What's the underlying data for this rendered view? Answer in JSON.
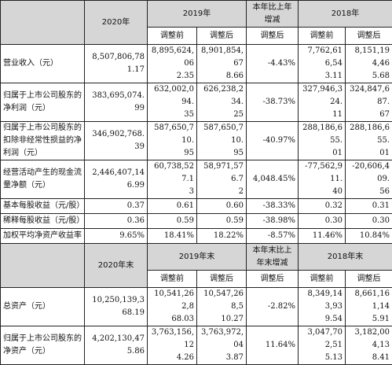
{
  "header1": {
    "col_2020": "2020年",
    "col_2019": "2019年",
    "col_change": "本年比上年增减",
    "col_2018": "2018年",
    "sub_before": "调整前",
    "sub_after": "调整后",
    "sub_change": "调整后"
  },
  "rows1": [
    {
      "label": "营业收入（元）",
      "v2020": "8,507,806,78\n1.17",
      "v2019b": "8,895,624,06\n2.35",
      "v2019a": "8,901,854,67\n8.66",
      "chg": "-4.43%",
      "v2018b": "7,762,616,54\n3.11",
      "v2018a": "8,151,194,46\n5.68"
    },
    {
      "label": "归属于上市公司股东的净利润（元）",
      "v2020": "383,695,074.\n99",
      "v2019b": "632,002,094.\n35",
      "v2019a": "626,238,234.\n25",
      "chg": "-38.73%",
      "v2018b": "327,946,324.\n11",
      "v2018a": "324,847,687.\n67"
    },
    {
      "label": "归属于上市公司股东的扣除非经常性损益的净利润（元）",
      "v2020": "346,902,768.\n39",
      "v2019b": "587,650,710.\n95",
      "v2019a": "587,650,710.\n95",
      "chg": "-40.97%",
      "v2018b": "288,186,655.\n01",
      "v2018a": "288,186,655.\n01"
    },
    {
      "label": "经营活动产生的现金流量净额（元）",
      "v2020": "2,446,407,14\n6.99",
      "v2019b": "60,738,527.1\n3",
      "v2019a": "58,971,576.7\n2",
      "chg": "4,048.45%",
      "v2018b": "-77,562,911.\n40",
      "v2018a": "-20,606,409.\n56"
    },
    {
      "label": "基本每股收益（元/股）",
      "v2020": "0.37",
      "v2019b": "0.61",
      "v2019a": "0.60",
      "chg": "-38.33%",
      "v2018b": "0.32",
      "v2018a": "0.31"
    },
    {
      "label": "稀释每股收益（元/股）",
      "v2020": "0.36",
      "v2019b": "0.59",
      "v2019a": "0.59",
      "chg": "-38.98%",
      "v2018b": "0.30",
      "v2018a": "0.30"
    },
    {
      "label": "加权平均净资产收益率",
      "v2020": "9.65%",
      "v2019b": "18.41%",
      "v2019a": "18.22%",
      "chg": "-8.57%",
      "v2018b": "11.46%",
      "v2018a": "10.84%"
    }
  ],
  "header2": {
    "col_2020": "2020年末",
    "col_2019": "2019年末",
    "col_change": "本年末比上年末增减",
    "col_2018": "2018年末",
    "sub_before": "调整前",
    "sub_after": "调整后",
    "sub_change": "调整后"
  },
  "rows2": [
    {
      "label": "总资产（元）",
      "v2020": "10,250,139,3\n68.19",
      "v2019b": "10,541,262,8\n68.03",
      "v2019a": "10,547,268,5\n10.27",
      "chg": "-2.82%",
      "v2018b": "8,349,143,93\n9.54",
      "v2018a": "8,661,161,14\n5.91"
    },
    {
      "label": "归属于上市公司股东的净资产（元）",
      "v2020": "4,202,130,47\n5.86",
      "v2019b": "3,763,156,12\n4.26",
      "v2019a": "3,763,972,04\n3.87",
      "chg": "11.64%",
      "v2018b": "3,047,702,51\n5.13",
      "v2018a": "3,182,004,13\n8.41"
    }
  ]
}
